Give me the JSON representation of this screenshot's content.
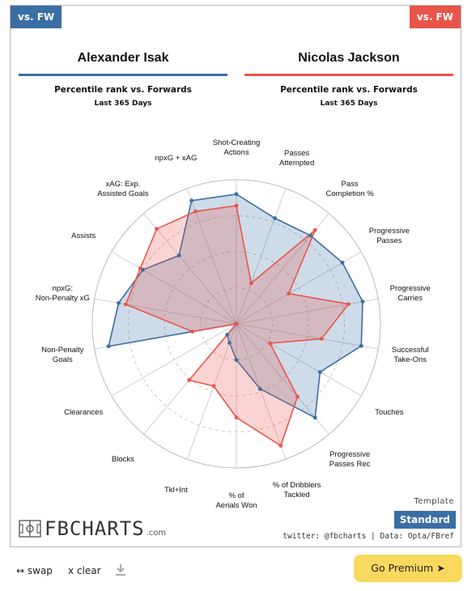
{
  "tags": {
    "left": "vs. FW",
    "right": "vs. FW"
  },
  "players": [
    {
      "name": "Alexander Isak",
      "subtitle": "Percentile rank vs. Forwards",
      "period": "Last 365 Days",
      "color": "#3b6ea5"
    },
    {
      "name": "Nicolas Jackson",
      "subtitle": "Percentile rank vs. Forwards",
      "period": "Last 365 Days",
      "color": "#e9554a"
    }
  ],
  "chart_data": {
    "type": "radar",
    "range": [
      0,
      100
    ],
    "categories": [
      "Shot-Creating Actions",
      "Passes Attempted",
      "Pass Completion %",
      "Progressive Passes",
      "Progressive Carries",
      "Successful Take-Ons",
      "Touches",
      "Progressive Passes Rec",
      "% of Dribblers Tackled",
      "% of Aerials Won",
      "Tkl+Int",
      "Blocks",
      "Clearances",
      "Non-Penalty Goals",
      "npxG: Non-Penalty xG",
      "Assists",
      "xAG: Exp. Assisted Goals",
      "npxG + xAG"
    ],
    "series": [
      {
        "name": "Alexander Isak",
        "color": "#3b6ea5",
        "values": [
          90,
          78,
          80,
          85,
          89,
          88,
          67,
          85,
          48,
          25,
          14,
          10,
          0,
          90,
          83,
          75,
          62,
          91
        ]
      },
      {
        "name": "Nicolas Jackson",
        "color": "#e9554a",
        "values": [
          82,
          30,
          85,
          42,
          79,
          60,
          27,
          66,
          90,
          65,
          46,
          51,
          0,
          31,
          78,
          77,
          86,
          83
        ]
      }
    ]
  },
  "footer": {
    "template_label": "Template",
    "template_value": "Standard",
    "logo": "FBCHARTS",
    "logo_suffix": ".com",
    "credit": "twitter: @fbcharts | Data: Opta/FBref"
  },
  "controls": {
    "swap": "swap",
    "clear": "clear",
    "swap_icon": "↔",
    "clear_icon": "x",
    "premium": "Go Premium ➤"
  }
}
